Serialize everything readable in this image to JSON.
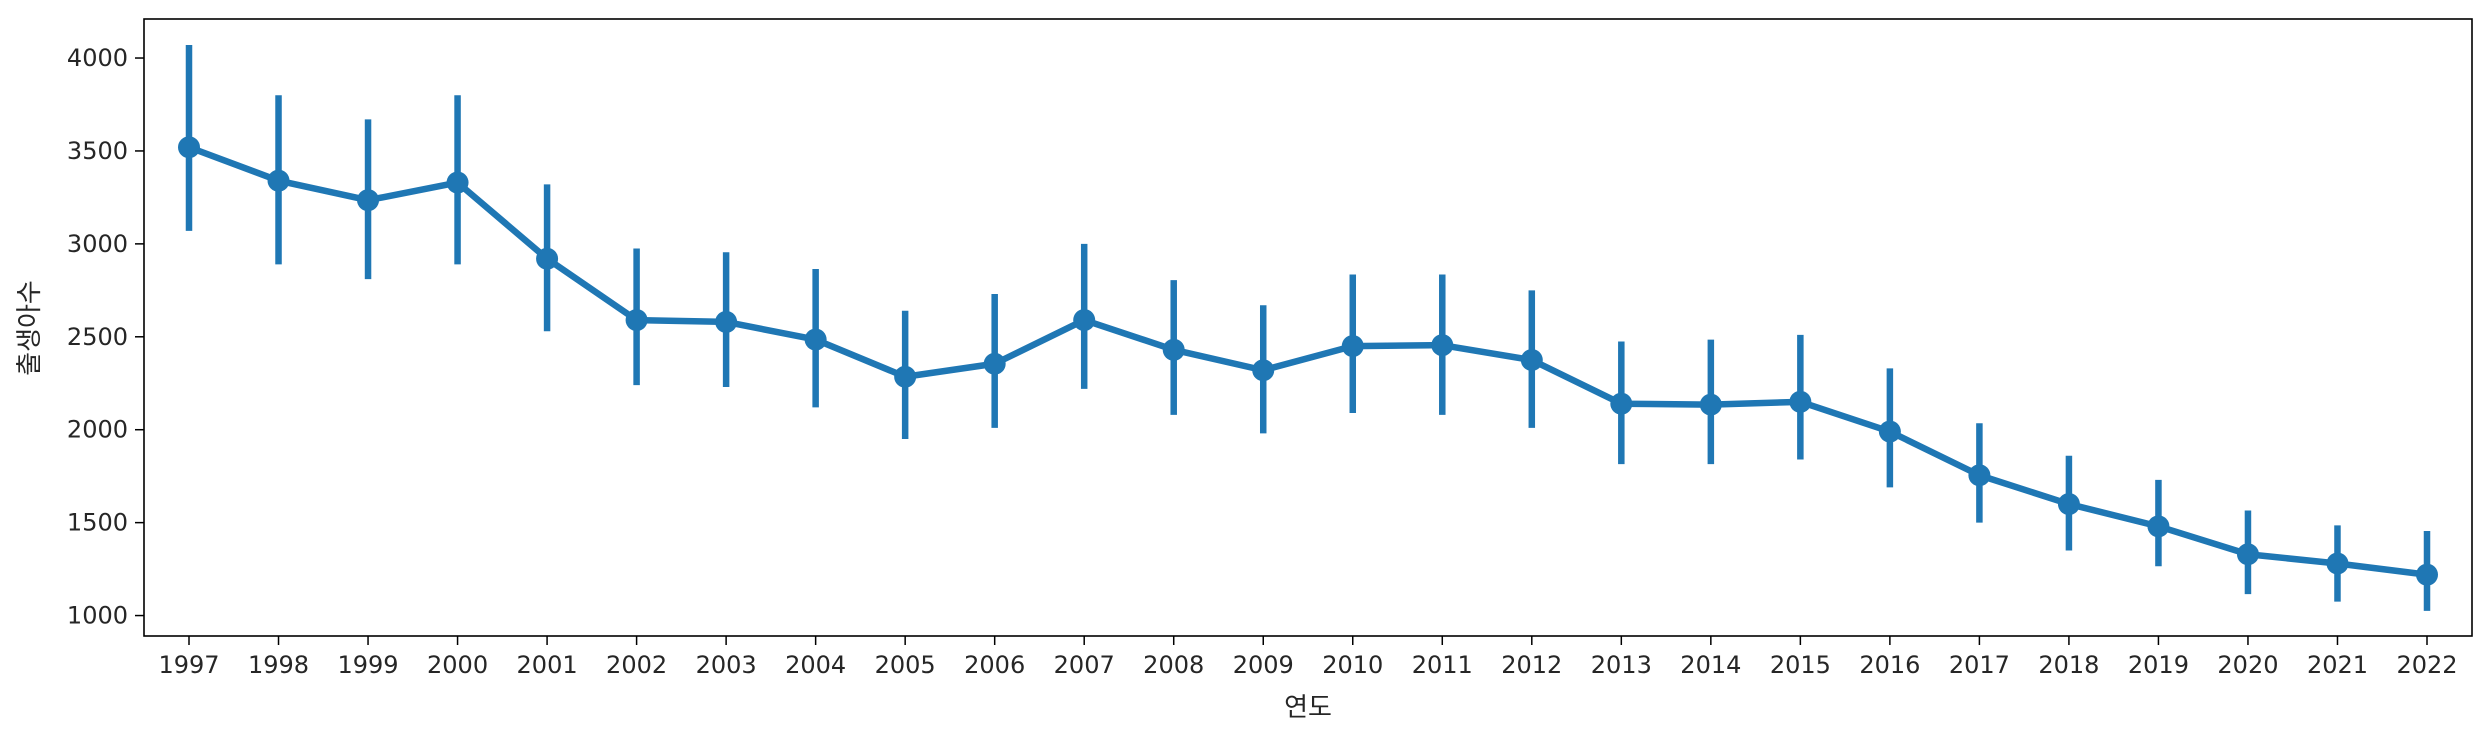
{
  "chart_data": {
    "type": "line",
    "xlabel": "연도",
    "ylabel": "출생아수",
    "categories": [
      "1997",
      "1998",
      "1999",
      "2000",
      "2001",
      "2002",
      "2003",
      "2004",
      "2005",
      "2006",
      "2007",
      "2008",
      "2009",
      "2010",
      "2011",
      "2012",
      "2013",
      "2014",
      "2015",
      "2016",
      "2017",
      "2018",
      "2019",
      "2020",
      "2021",
      "2022"
    ],
    "series": [
      {
        "values": [
          3520,
          3340,
          3235,
          3330,
          2920,
          2590,
          2580,
          2485,
          2285,
          2355,
          2590,
          2430,
          2320,
          2450,
          2455,
          2375,
          2140,
          2135,
          2150,
          1990,
          1755,
          1600,
          1480,
          1330,
          1280,
          1220
        ],
        "err_low": [
          3070,
          2890,
          2810,
          2890,
          2530,
          2240,
          2230,
          2120,
          1950,
          2010,
          2220,
          2080,
          1980,
          2090,
          2080,
          2010,
          1815,
          1815,
          1840,
          1690,
          1500,
          1350,
          1265,
          1115,
          1075,
          1025
        ],
        "err_high": [
          4070,
          3800,
          3670,
          3800,
          3320,
          2975,
          2955,
          2865,
          2640,
          2730,
          3000,
          2805,
          2670,
          2835,
          2835,
          2750,
          2475,
          2485,
          2510,
          2330,
          2035,
          1860,
          1730,
          1565,
          1485,
          1455
        ],
        "color": "#1f77b4"
      }
    ],
    "yticks": [
      1000,
      1500,
      2000,
      2500,
      3000,
      3500,
      4000
    ],
    "ylim": [
      890,
      4210
    ],
    "grid": false,
    "legend": "none"
  }
}
